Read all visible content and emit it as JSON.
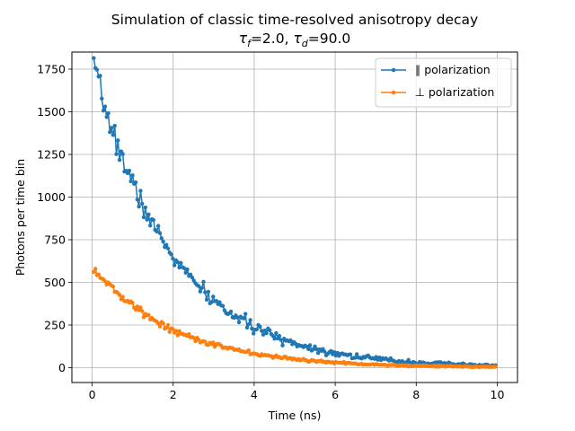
{
  "chart_data": {
    "type": "line",
    "title_line1": "Simulation of classic time-resolved anisotropy decay",
    "title_line2_parts": [
      "τ",
      "f",
      "=2.0, ",
      "τ",
      "d",
      "=90.0"
    ],
    "xlabel": "Time (ns)",
    "ylabel": "Photons per time bin",
    "xlim": [
      -0.5,
      10.5
    ],
    "ylim": [
      -87,
      1850
    ],
    "xticks": [
      0,
      2,
      4,
      6,
      8,
      10
    ],
    "xtick_labels": [
      "0",
      "2",
      "4",
      "6",
      "8",
      "10"
    ],
    "yticks": [
      0,
      250,
      500,
      750,
      1000,
      1250,
      1500,
      1750
    ],
    "ytick_labels": [
      "0",
      "250",
      "500",
      "750",
      "1000",
      "1250",
      "1500",
      "1750"
    ],
    "grid": true,
    "legend_position": "top-right",
    "series": [
      {
        "name": "∥ polarization",
        "color": "#1f77b4",
        "amplitude": 1790,
        "tau": 1.98,
        "noise_seed": 7,
        "noise_scale": 1.0
      },
      {
        "name": "⊥ polarization",
        "color": "#ff7f0e",
        "amplitude": 596,
        "tau": 2.02,
        "noise_seed": 13,
        "noise_scale": 0.6
      }
    ],
    "x_range": [
      0.04,
      9.96
    ],
    "n_points": 250
  }
}
